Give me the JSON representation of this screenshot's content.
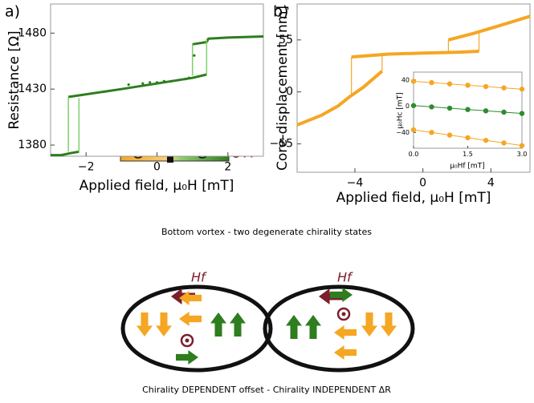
{
  "chart_data": [
    {
      "type": "line",
      "panel_label": "a)",
      "xlabel": "Applied field, μ₀H [mT]",
      "ylabel": "Resistance [Ω]",
      "xlim": [
        -3,
        3
      ],
      "xticks": [
        {
          "value": -2,
          "label": "−2"
        },
        0,
        2
      ],
      "ylim": [
        1370,
        1506
      ],
      "yticks": [
        1380,
        1430,
        1480
      ],
      "series": [
        {
          "color": "#2e7d1e",
          "linewidth": 3,
          "marker": false,
          "x": [
            -3,
            -2.7,
            -2.4,
            -2.2,
            null,
            -2.5,
            -1,
            0,
            1,
            1.4,
            null,
            1.0,
            1.4,
            1.45,
            2,
            3
          ],
          "values": [
            1371,
            1371,
            1373,
            1374,
            null,
            1423,
            1430,
            1435,
            1440,
            1443,
            null,
            1470,
            1472,
            1475,
            1476,
            1477
          ]
        },
        {
          "color": "#7fd06a",
          "linewidth": 1.5,
          "marker": false,
          "x": [
            -2.5,
            -2.5,
            null,
            -2.2,
            -2.2,
            null,
            1.0,
            1.0,
            null,
            1.4,
            1.4
          ],
          "values": [
            1374,
            1423,
            null,
            1374,
            1422,
            null,
            1442,
            1470,
            null,
            1443,
            1475
          ]
        },
        {
          "color": "#2e7d1e",
          "linewidth": 0,
          "marker": true,
          "x": [
            -0.8,
            -0.4,
            -0.2,
            0,
            0.2,
            0.4,
            0.6,
            0.8,
            0.9,
            1.05
          ],
          "values": [
            1434,
            1435,
            1436,
            1436,
            1437,
            1437,
            1438,
            1439,
            1440,
            1460
          ]
        }
      ],
      "annotations": [
        "⊗H",
        "⊗H"
      ]
    },
    {
      "type": "line",
      "panel_label": "b)",
      "xlabel": "Applied field, μ₀H [mT]",
      "ylabel": "Core-displacement [nm]",
      "xlim": [
        -7.4,
        6.3
      ],
      "xticks": [
        {
          "value": -4,
          "label": "−4"
        },
        0,
        4
      ],
      "ylim": [
        -85,
        93
      ],
      "yticks": [
        {
          "value": -55,
          "label": "−55"
        },
        0,
        55
      ],
      "series": [
        {
          "color": "#f5a623",
          "linewidth": 4,
          "marker": false,
          "x": [
            -7.4,
            -6,
            -5,
            -4.3,
            -3.5,
            -2.4,
            null,
            -4.2,
            -2,
            0,
            2,
            3.3,
            null,
            1.5,
            3,
            4.5,
            6.3
          ],
          "values": [
            -35,
            -25,
            -15,
            -5,
            5,
            22,
            null,
            37,
            40,
            41,
            42,
            43,
            null,
            55,
            62,
            70,
            80
          ]
        },
        {
          "color": "#f5a623",
          "linewidth": 1.2,
          "marker": false,
          "x": [
            -4.2,
            -4.2,
            null,
            -2.4,
            -2.4,
            null,
            1.5,
            1.5,
            null,
            3.3,
            3.3
          ],
          "values": [
            -5,
            37,
            null,
            22,
            39,
            null,
            43,
            55,
            null,
            43,
            64
          ]
        }
      ]
    },
    {
      "type": "line",
      "xlabel": "μ₀Hf [mT]",
      "ylabel": "μ₀Hc [mT]",
      "xlim": [
        0,
        3
      ],
      "xticks": [
        {
          "value": 0,
          "label": "0.0"
        },
        1.5,
        {
          "value": 3,
          "label": "3.0"
        }
      ],
      "ylim": [
        -64,
        52
      ],
      "yticks": [
        {
          "value": -40,
          "label": "−40"
        },
        0,
        40
      ],
      "series": [
        {
          "color": "#f5a623",
          "linewidth": 1,
          "marker": true,
          "x": [
            0,
            0.5,
            1,
            1.5,
            2,
            2.5,
            3
          ],
          "values": [
            38,
            36,
            34,
            32,
            30,
            28,
            26
          ]
        },
        {
          "color": "#2e8b2e",
          "linewidth": 1,
          "marker": true,
          "x": [
            0,
            0.5,
            1,
            1.5,
            2,
            2.5,
            3
          ],
          "values": [
            1,
            -1,
            -3,
            -5,
            -7,
            -9,
            -11
          ]
        },
        {
          "color": "#f5a623",
          "linewidth": 1,
          "marker": true,
          "x": [
            0,
            0.5,
            1,
            1.5,
            2,
            2.5,
            3
          ],
          "values": [
            -36,
            -40,
            -44,
            -48,
            -52,
            -56,
            -60
          ]
        }
      ]
    }
  ],
  "diagram": {
    "title": "Bottom vortex - two degenerate chirality states",
    "field_labels": [
      "Hf",
      "Hf"
    ],
    "caption": "Chirality DEPENDENT offset - Chirality INDEPENDENT ΔR"
  }
}
